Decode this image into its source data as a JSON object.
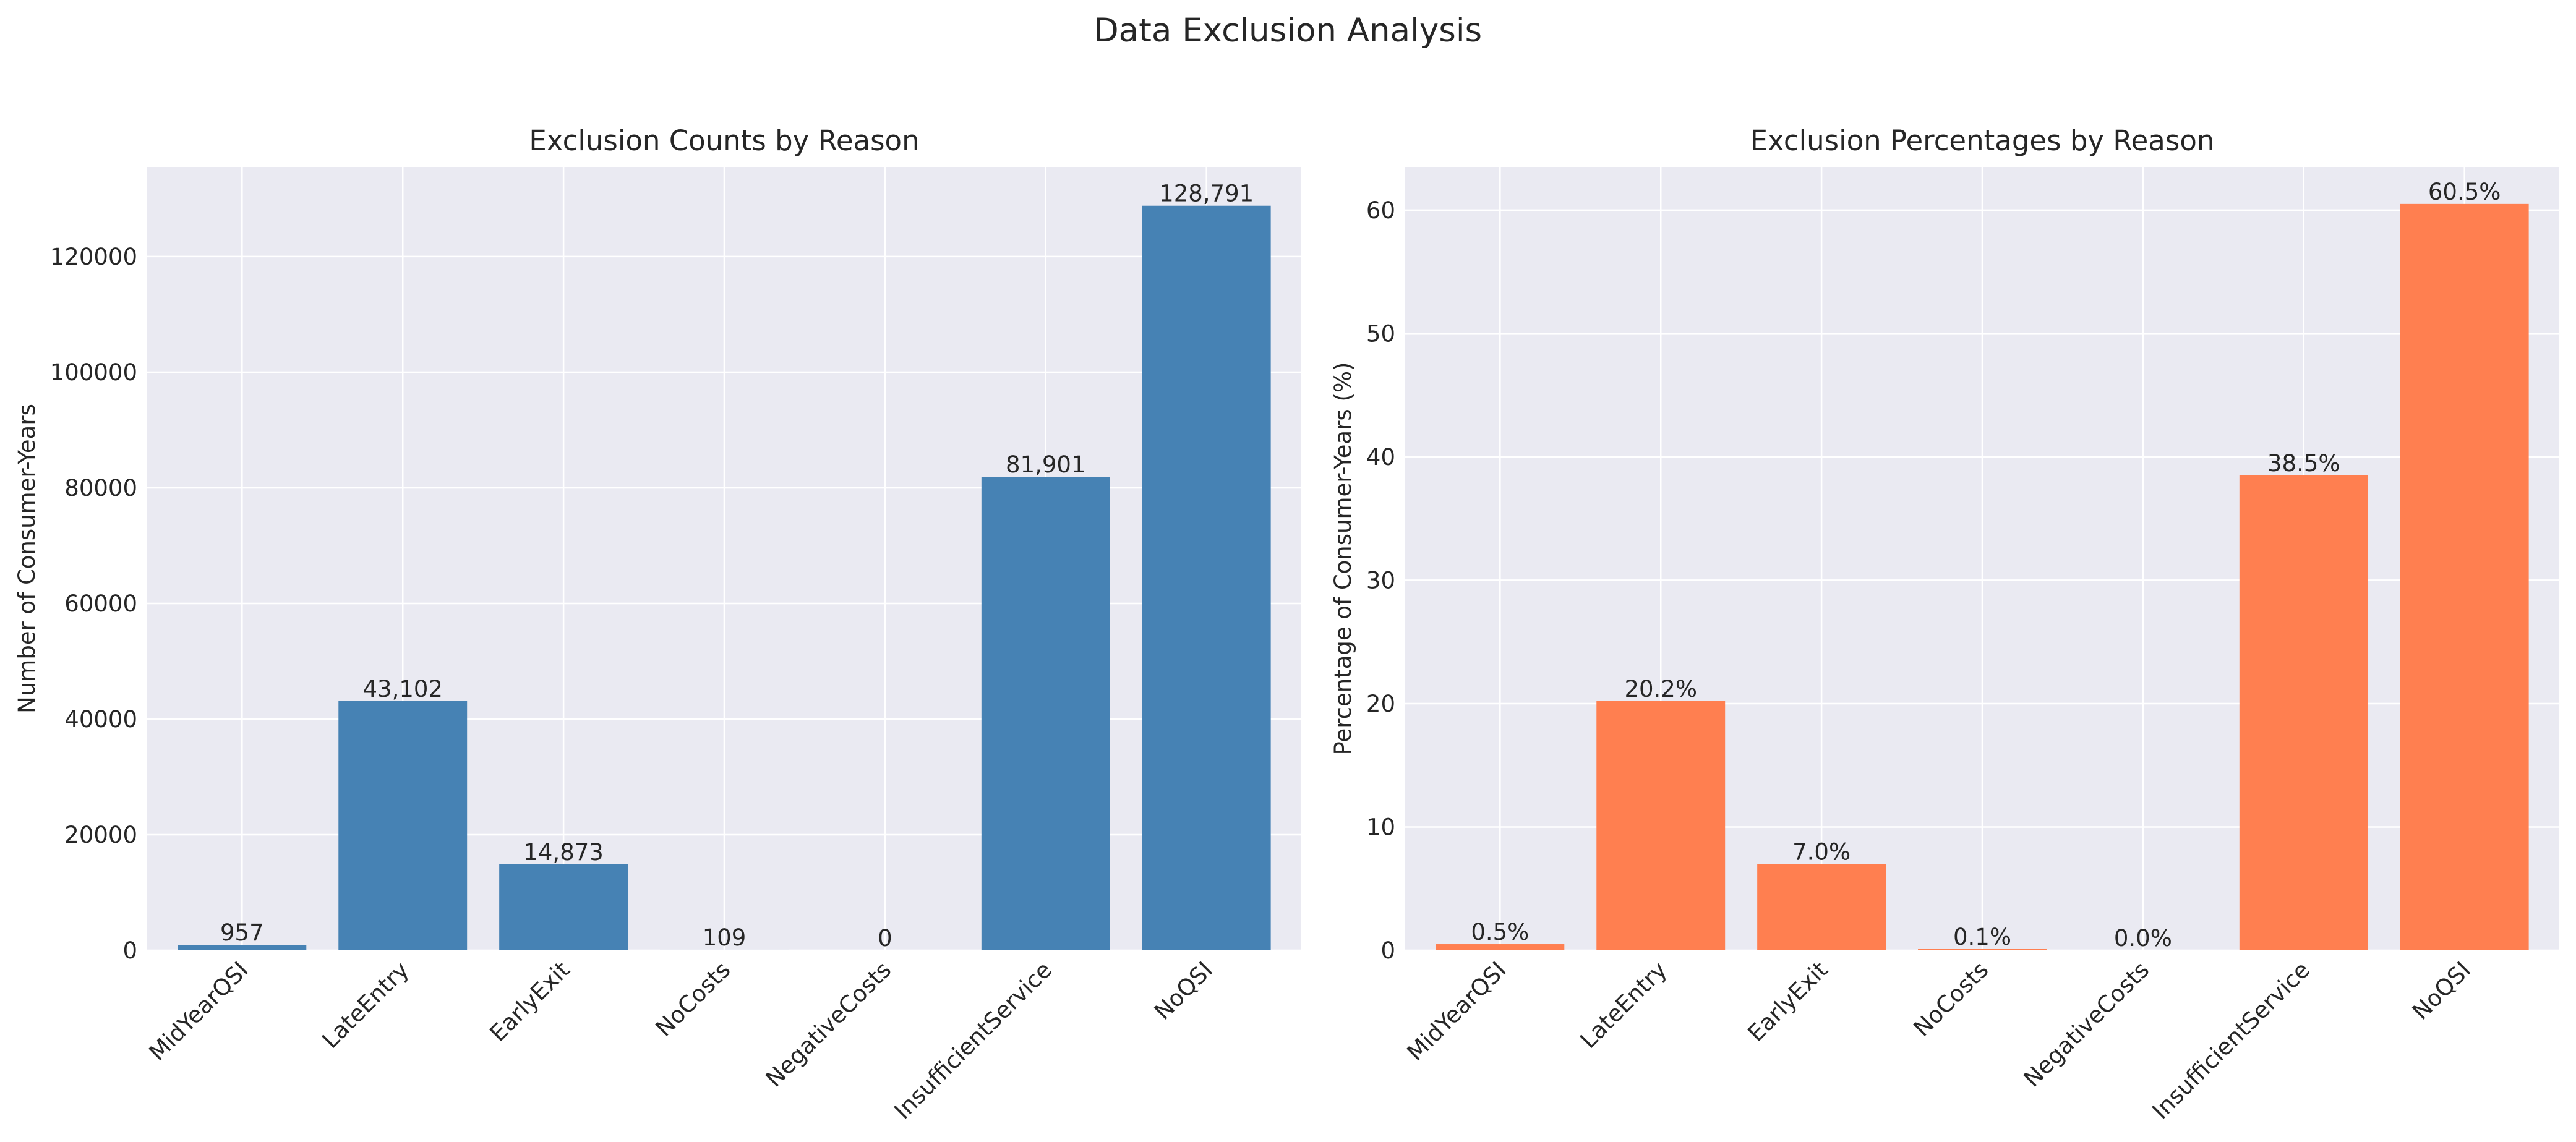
{
  "figure_title": "Data Exclusion Analysis",
  "colors": {
    "panel_bg": "#EAEAF2",
    "grid": "#FFFFFF",
    "text": "#262626",
    "counts_bar": "#4682B4",
    "percent_bar": "#FF7F50"
  },
  "chart_data": [
    {
      "type": "bar",
      "title": "Exclusion Counts by Reason",
      "xlabel": "",
      "ylabel": "Number of Consumer-Years",
      "categories": [
        "MidYearQSI",
        "LateEntry",
        "EarlyExit",
        "NoCosts",
        "NegativeCosts",
        "InsufficientService",
        "NoQSI"
      ],
      "values": [
        957,
        43102,
        14873,
        109,
        0,
        81901,
        128791
      ],
      "value_labels": [
        "957",
        "43,102",
        "14,873",
        "109",
        "0",
        "81,901",
        "128,791"
      ],
      "ylim": [
        0,
        135500
      ],
      "yticks": [
        0,
        20000,
        40000,
        60000,
        80000,
        100000,
        120000
      ],
      "ytick_labels": [
        "0",
        "20000",
        "40000",
        "60000",
        "80000",
        "100000",
        "120000"
      ],
      "grid": true,
      "color": "#4682B4"
    },
    {
      "type": "bar",
      "title": "Exclusion Percentages by Reason",
      "xlabel": "",
      "ylabel": "Percentage of Consumer-Years (%)",
      "categories": [
        "MidYearQSI",
        "LateEntry",
        "EarlyExit",
        "NoCosts",
        "NegativeCosts",
        "InsufficientService",
        "NoQSI"
      ],
      "values": [
        0.5,
        20.2,
        7.0,
        0.1,
        0.0,
        38.5,
        60.5
      ],
      "value_labels": [
        "0.5%",
        "20.2%",
        "7.0%",
        "0.1%",
        "0.0%",
        "38.5%",
        "60.5%"
      ],
      "ylim": [
        0,
        63.5
      ],
      "yticks": [
        0,
        10,
        20,
        30,
        40,
        50,
        60
      ],
      "ytick_labels": [
        "0",
        "10",
        "20",
        "30",
        "40",
        "50",
        "60"
      ],
      "grid": true,
      "color": "#FF7F50"
    }
  ]
}
